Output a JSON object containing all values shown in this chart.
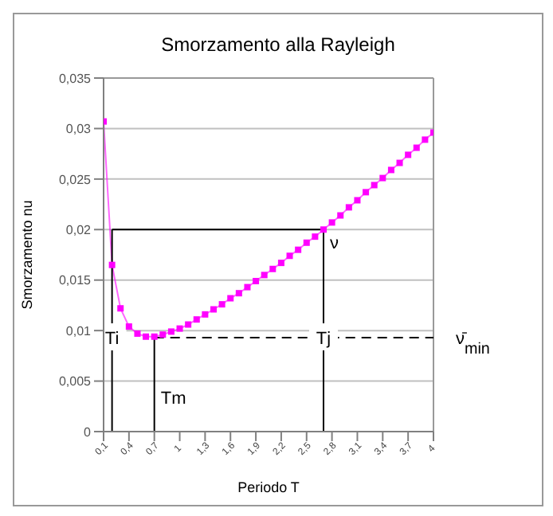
{
  "chart_data": {
    "type": "line",
    "title": "Smorzamento alla Rayleigh",
    "xlabel": "Periodo T",
    "ylabel": "Smorzamento nu",
    "x": [
      0.1,
      0.2,
      0.3,
      0.4,
      0.5,
      0.6,
      0.7,
      0.8,
      0.9,
      1.0,
      1.1,
      1.2,
      1.3,
      1.4,
      1.5,
      1.6,
      1.7,
      1.8,
      1.9,
      2.0,
      2.1,
      2.2,
      2.3,
      2.4,
      2.5,
      2.6,
      2.7,
      2.8,
      2.9,
      3.0,
      3.1,
      3.2,
      3.3,
      3.4,
      3.5,
      3.6,
      3.7,
      3.8,
      3.9,
      4.0
    ],
    "series": [
      {
        "color": "#ff00ff",
        "values": [
          0.0307,
          0.0165,
          0.0122,
          0.0104,
          0.0097,
          0.0094,
          0.0094,
          0.0096,
          0.0099,
          0.0102,
          0.0106,
          0.0111,
          0.0116,
          0.0121,
          0.0126,
          0.0132,
          0.0137,
          0.0143,
          0.0149,
          0.0155,
          0.0161,
          0.0167,
          0.0174,
          0.018,
          0.0187,
          0.0193,
          0.02,
          0.0207,
          0.0214,
          0.0222,
          0.0229,
          0.0237,
          0.0244,
          0.0251,
          0.0259,
          0.0266,
          0.0274,
          0.0281,
          0.0289,
          0.0296
        ]
      }
    ],
    "xlim": [
      0.1,
      4
    ],
    "xticks": [
      {
        "value": 0.1,
        "label": "0,1"
      },
      {
        "value": 0.4,
        "label": "0,4"
      },
      {
        "value": 0.7,
        "label": "0,7"
      },
      {
        "value": 1,
        "label": "1"
      },
      {
        "value": 1.3,
        "label": "1,3"
      },
      {
        "value": 1.6,
        "label": "1,6"
      },
      {
        "value": 1.9,
        "label": "1,9"
      },
      {
        "value": 2.2,
        "label": "2,2"
      },
      {
        "value": 2.5,
        "label": "2,5"
      },
      {
        "value": 2.8,
        "label": "2,8"
      },
      {
        "value": 3.1,
        "label": "3,1"
      },
      {
        "value": 3.4,
        "label": "3,4"
      },
      {
        "value": 3.7,
        "label": "3,7"
      },
      {
        "value": 4,
        "label": "4"
      }
    ],
    "ylim": [
      0,
      0.035
    ],
    "yticks": [
      {
        "value": 0,
        "label": "0"
      },
      {
        "value": 0.005,
        "label": "0,005"
      },
      {
        "value": 0.01,
        "label": "0,01"
      },
      {
        "value": 0.015,
        "label": "0,015"
      },
      {
        "value": 0.02,
        "label": "0,02"
      },
      {
        "value": 0.025,
        "label": "0,025"
      },
      {
        "value": 0.03,
        "label": "0,03"
      },
      {
        "value": 0.035,
        "label": "0,035"
      }
    ],
    "grid": "y",
    "marker": "square",
    "line_style": "solid",
    "legend": false,
    "ref_lines": [
      {
        "axis": "y",
        "value": 0.02,
        "label": "ν",
        "color": "#000000",
        "line_style": "solid"
      },
      {
        "axis": "y",
        "value": 0.0093,
        "label": "ν̄$_{min}$",
        "color": "#000000",
        "line_style": "dashed"
      },
      {
        "axis": "x",
        "value": 0.2,
        "label": "Ti",
        "color": "#000000",
        "line_style": "solid"
      },
      {
        "axis": "x",
        "value": 0.7,
        "label": "Tm",
        "color": "#000000",
        "line_style": "solid"
      },
      {
        "axis": "x",
        "value": 2.7,
        "label": "Tj",
        "color": "#000000",
        "line_style": "solid"
      }
    ]
  }
}
